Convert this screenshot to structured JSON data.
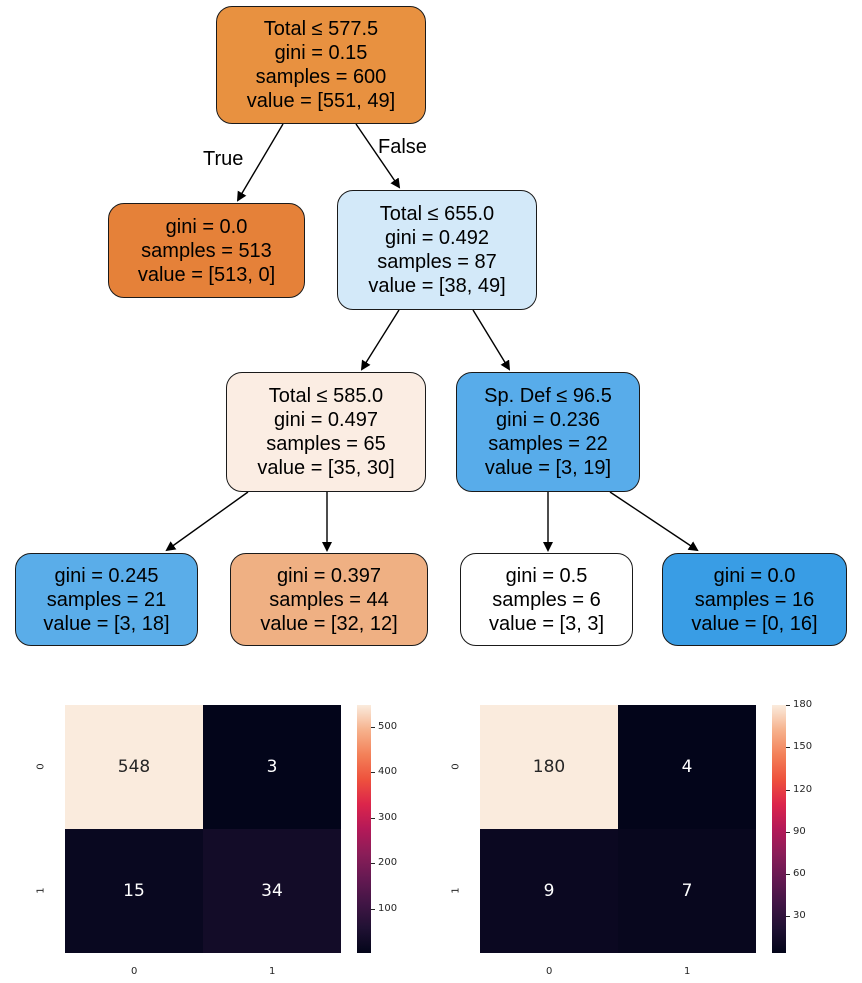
{
  "tree": {
    "nodes": [
      {
        "id": "n0",
        "lines": [
          "Total ≤ 577.5",
          "gini = 0.15",
          "samples = 600",
          "value = [551, 49]"
        ],
        "color": "#e89140"
      },
      {
        "id": "n1",
        "lines": [
          "gini = 0.0",
          "samples = 513",
          "value = [513, 0]"
        ],
        "color": "#e58139"
      },
      {
        "id": "n2",
        "lines": [
          "Total ≤ 655.0",
          "gini = 0.492",
          "samples = 87",
          "value = [38, 49]"
        ],
        "color": "#d3e9f9"
      },
      {
        "id": "n3",
        "lines": [
          "Total ≤ 585.0",
          "gini = 0.497",
          "samples = 65",
          "value = [35, 30]"
        ],
        "color": "#fbede3"
      },
      {
        "id": "n4",
        "lines": [
          "Sp. Def ≤ 96.5",
          "gini = 0.236",
          "samples = 22",
          "value = [3, 19]"
        ],
        "color": "#58acea"
      },
      {
        "id": "n5",
        "lines": [
          "gini = 0.245",
          "samples = 21",
          "value = [3, 18]"
        ],
        "color": "#5aade9"
      },
      {
        "id": "n6",
        "lines": [
          "gini = 0.397",
          "samples = 44",
          "value = [32, 12]"
        ],
        "color": "#efb083"
      },
      {
        "id": "n7",
        "lines": [
          "gini = 0.5",
          "samples = 6",
          "value = [3, 3]"
        ],
        "color": "#ffffff"
      },
      {
        "id": "n8",
        "lines": [
          "gini = 0.0",
          "samples = 16",
          "value = [0, 16]"
        ],
        "color": "#399de5"
      }
    ],
    "edge_labels": {
      "true_label": "True",
      "false_label": "False"
    }
  },
  "confusion_matrices": [
    {
      "values": [
        [
          548,
          3
        ],
        [
          15,
          34
        ]
      ],
      "x_ticks": [
        "0",
        "1"
      ],
      "y_ticks": [
        "0",
        "1"
      ],
      "colorbar_ticks": [
        "500",
        "400",
        "300",
        "200",
        "100"
      ],
      "colorbar_values": [
        500,
        400,
        300,
        200,
        100
      ],
      "vmin": 3,
      "vmax": 548
    },
    {
      "values": [
        [
          180,
          4
        ],
        [
          9,
          7
        ]
      ],
      "x_ticks": [
        "0",
        "1"
      ],
      "y_ticks": [
        "0",
        "1"
      ],
      "colorbar_ticks": [
        "180",
        "150",
        "120",
        "90",
        "60",
        "30"
      ],
      "colorbar_values": [
        180,
        150,
        120,
        90,
        60,
        30
      ],
      "vmin": 4,
      "vmax": 180
    }
  ],
  "colormap": "rocket"
}
